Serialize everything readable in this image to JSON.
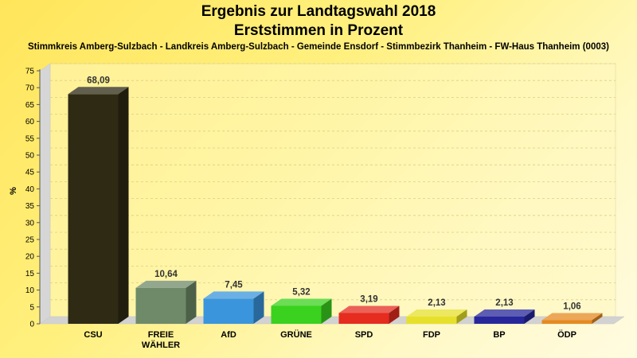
{
  "header": {
    "title_line1": "Ergebnis zur Landtagswahl 2018",
    "title_line2": "Erststimmen in Prozent",
    "subtitle": "Stimmkreis Amberg-Sulzbach - Landkreis Amberg-Sulzbach - Gemeinde Ensdorf - Stimmbezirk Thanheim - FW-Haus Thanheim (0003)"
  },
  "chart_data": {
    "type": "bar",
    "title": "Ergebnis zur Landtagswahl 2018",
    "subtitle": "Erststimmen in Prozent",
    "xlabel": "",
    "ylabel": "%",
    "ylim": [
      0,
      75
    ],
    "yticks": [
      0,
      5,
      10,
      15,
      20,
      25,
      30,
      35,
      40,
      45,
      50,
      55,
      60,
      65,
      70,
      75
    ],
    "grid": true,
    "categories": [
      "CSU",
      "FREIE WÄHLER",
      "AfD",
      "GRÜNE",
      "SPD",
      "FDP",
      "BP",
      "ÖDP"
    ],
    "category_lines": [
      [
        "CSU"
      ],
      [
        "FREIE",
        "WÄHLER"
      ],
      [
        "AfD"
      ],
      [
        "GRÜNE"
      ],
      [
        "SPD"
      ],
      [
        "FDP"
      ],
      [
        "BP"
      ],
      [
        "ÖDP"
      ]
    ],
    "values": [
      68.09,
      10.64,
      7.45,
      5.32,
      3.19,
      2.13,
      2.13,
      1.06
    ],
    "value_labels": [
      "68,09",
      "10,64",
      "7,45",
      "5,32",
      "3,19",
      "2,13",
      "2,13",
      "1,06"
    ],
    "colors": [
      "#2e2a14",
      "#6e8a68",
      "#3a95dc",
      "#3ad21e",
      "#e52c1f",
      "#e6e02a",
      "#27279b",
      "#e58a20"
    ]
  }
}
